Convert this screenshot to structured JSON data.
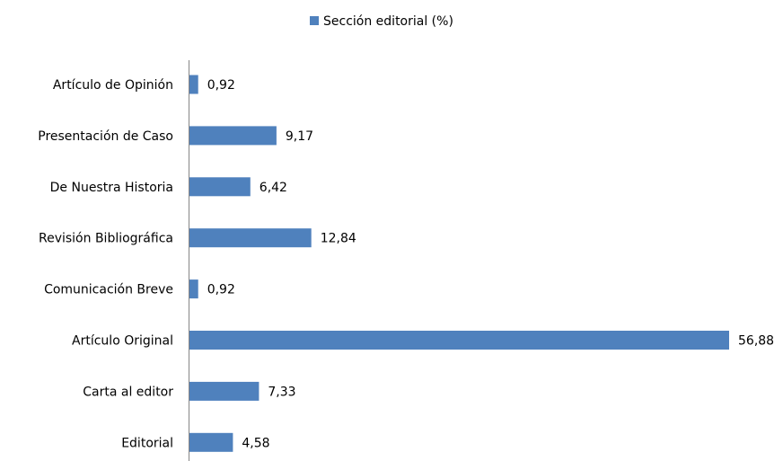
{
  "chart_data": {
    "type": "bar",
    "orientation": "horizontal",
    "categories": [
      "Artículo de Opinión",
      "Presentación de Caso",
      "De Nuestra Historia",
      "Revisión Bibliográfica",
      "Comunicación Breve",
      "Artículo Original",
      "Carta al editor",
      "Editorial"
    ],
    "series": [
      {
        "name": "Sección editorial (%)",
        "color": "#4f81bd",
        "values": [
          0.92,
          9.17,
          6.42,
          12.84,
          0.92,
          56.88,
          7.33,
          4.58
        ],
        "labels": [
          "0,92",
          "9,17",
          "6,42",
          "12,84",
          "0,92",
          "56,88",
          "7,33",
          "4,58"
        ]
      }
    ],
    "title": "",
    "xlabel": "",
    "ylabel": "",
    "xlim": [
      0,
      56.88
    ],
    "grid": false,
    "legend": "top-center"
  }
}
